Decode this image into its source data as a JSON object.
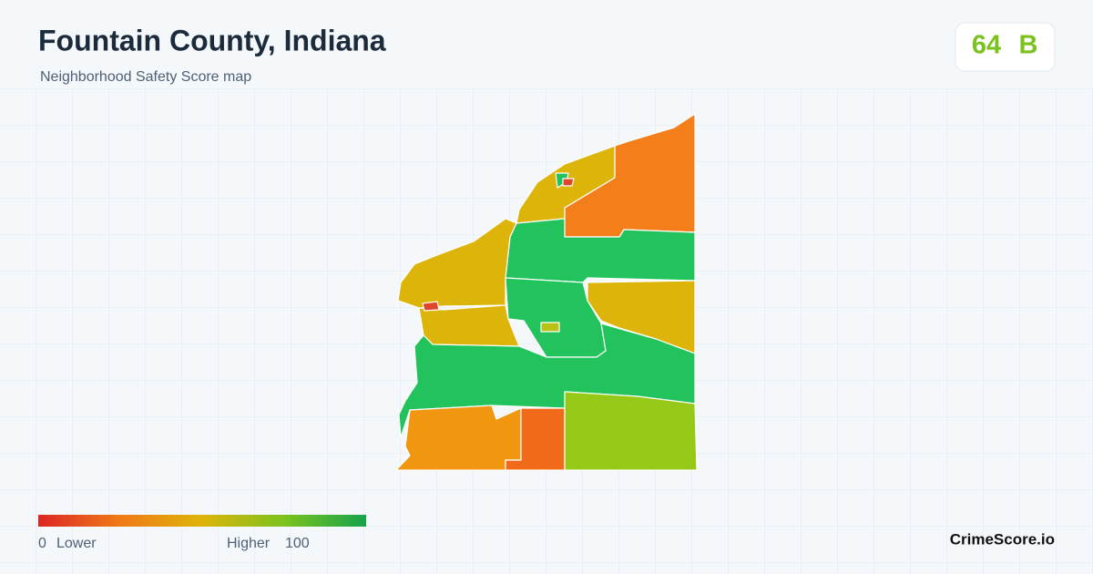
{
  "header": {
    "title": "Fountain County, Indiana",
    "subtitle": "Neighborhood Safety Score map"
  },
  "score": {
    "value": 64,
    "grade": "B"
  },
  "legend": {
    "min": 0,
    "min_label": "Lower",
    "max_label": "Higher",
    "max": 100
  },
  "brand": "CrimeScore.io"
}
